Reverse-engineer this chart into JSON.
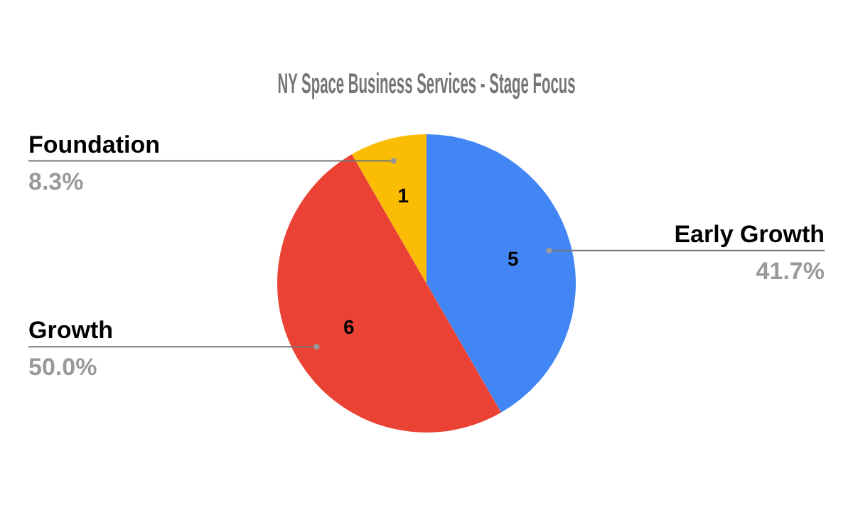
{
  "chart_data": {
    "type": "pie",
    "title": "NY Space Business Services - Stage Focus",
    "categories": [
      "Early Growth",
      "Growth",
      "Foundation"
    ],
    "values": [
      5,
      6,
      1
    ],
    "colors": [
      "#4285f4",
      "#ea4335",
      "#fbbc04"
    ],
    "data_labels": true,
    "annotations": [
      {
        "text": "41.7%",
        "x": "Early Growth"
      },
      {
        "text": "50.0%",
        "x": "Growth"
      },
      {
        "text": "8.3%",
        "x": "Foundation"
      }
    ]
  }
}
